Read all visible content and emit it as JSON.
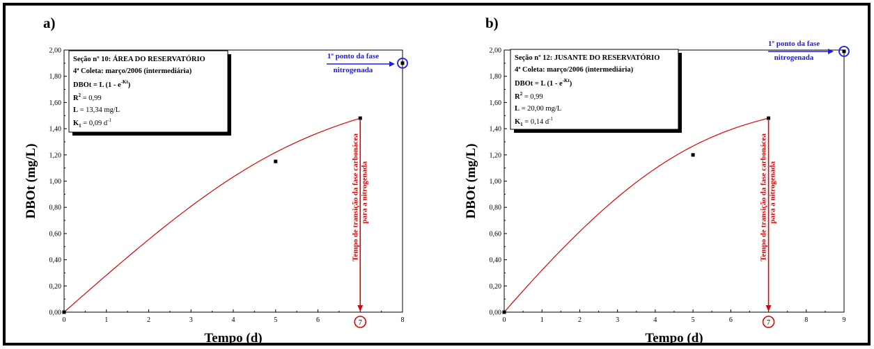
{
  "colors": {
    "curve": "#e00000",
    "annotation_red": "#e00000",
    "annotation_blue": "#1a1aff",
    "marker": "#000000"
  },
  "icons": {
    "marker": "black-square-marker",
    "circled_point": "circled-point-icon",
    "arrow": "arrow-icon"
  },
  "chart_data": [
    {
      "type": "line",
      "panel_label": "a)",
      "xlabel": "Tempo (d)",
      "ylabel": "DBOt (mg/L)",
      "xlim": [
        0,
        8
      ],
      "ylim": [
        0,
        2
      ],
      "x_ticks": [
        "0",
        "1",
        "2",
        "3",
        "4",
        "5",
        "6",
        "7",
        "8"
      ],
      "y_ticks": [
        "0,00",
        "0,20",
        "0,40",
        "0,60",
        "0,80",
        "1,00",
        "1,20",
        "1,40",
        "1,60",
        "1,80",
        "2,00"
      ],
      "grid": false,
      "fit": {
        "L": 13.34,
        "K": 0.09
      },
      "points": {
        "x": [
          0,
          5,
          7
        ],
        "y": [
          0.0,
          1.15,
          1.48
        ]
      },
      "info_box": {
        "title": "Seção nº 10: ÁREA DO RESERVATÓRIO",
        "coleta": "4ª Coleta: março/2006 (intermediária)",
        "eq_main": "DBOt = L (1 - e",
        "eq_sup": "-Kt",
        "eq_end": ")",
        "r_label": "R",
        "r_sup": "2",
        "r_value": " = 0,99",
        "l_label": "L",
        "l_value": " = 13,34 mg/L",
        "k_label": "K",
        "k_sub": "1",
        "k_value": " = 0,09 d",
        "k_sup": "-1"
      },
      "nitro_label": [
        "1º ponto da fase",
        "nitrogenada"
      ],
      "nitro_point": {
        "x": 8,
        "y": 1.9
      },
      "transition_label": [
        "Tempo de transição da fase carbonácea",
        "para a nitrogenada"
      ],
      "transition_tick": "7",
      "transition_point": {
        "x": 7,
        "y": 1.48
      }
    },
    {
      "type": "line",
      "panel_label": "b)",
      "xlabel": "Tempo (d)",
      "ylabel": "DBOt (mg/L)",
      "xlim": [
        0,
        9
      ],
      "ylim": [
        0,
        2
      ],
      "x_ticks": [
        "0",
        "1",
        "2",
        "3",
        "4",
        "5",
        "6",
        "7",
        "8",
        "9"
      ],
      "y_ticks": [
        "0,00",
        "0,20",
        "0,40",
        "0,60",
        "0,80",
        "1,00",
        "1,20",
        "1,40",
        "1,60",
        "1,80",
        "2,00"
      ],
      "grid": false,
      "fit": {
        "L": 20.0,
        "K": 0.14
      },
      "points": {
        "x": [
          0,
          5,
          7
        ],
        "y": [
          0.0,
          1.2,
          1.48
        ]
      },
      "info_box": {
        "title": "Seção nº 12: JUSANTE DO RESERVATÓRIO",
        "coleta": "4ª Coleta: março/2006 (intermediária)",
        "eq_main": "DBOt = L (1 - e",
        "eq_sup": "-Kt",
        "eq_end": ")",
        "r_label": "R",
        "r_sup": "2",
        "r_value": " = 0,99",
        "l_label": "L",
        "l_value": " = 20,00 mg/L",
        "k_label": "K",
        "k_sub": "1",
        "k_value": " = 0,14 d",
        "k_sup": "-1"
      },
      "nitro_label": [
        "1º ponto da fase",
        "nitrogenada"
      ],
      "nitro_point": {
        "x": 9,
        "y": 1.99
      },
      "transition_label": [
        "Tempo de transição da fase carbonácea",
        "para a nitrogenada"
      ],
      "transition_tick": "7",
      "transition_point": {
        "x": 7,
        "y": 1.48
      }
    }
  ]
}
